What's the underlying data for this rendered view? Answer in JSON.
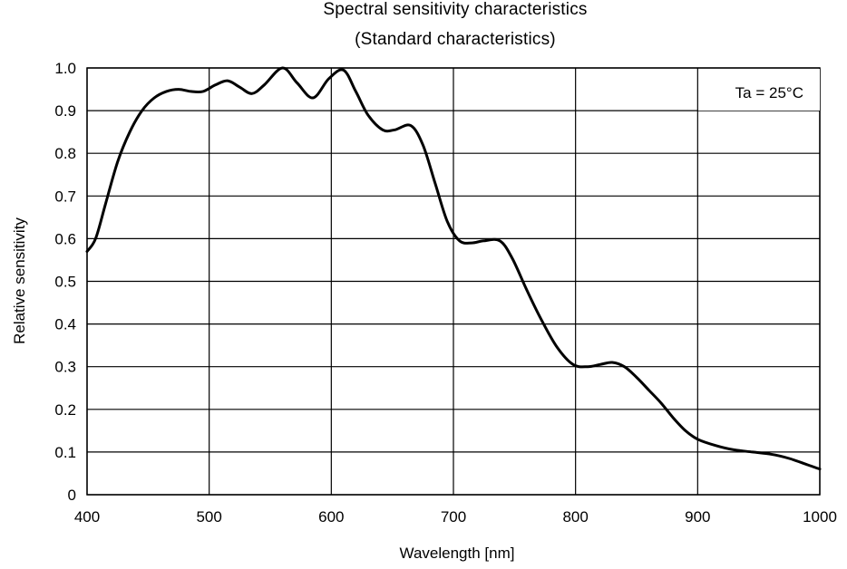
{
  "chart_data": {
    "type": "line",
    "title": "Spectral sensitivity characteristics",
    "subtitle": "(Standard characteristics)",
    "xlabel": "Wavelength [nm]",
    "ylabel": "Relative sensitivity",
    "annotation": "Ta = 25°C",
    "xlim": [
      400,
      1000
    ],
    "ylim": [
      0,
      1.0
    ],
    "x_ticks": [
      "400",
      "500",
      "600",
      "700",
      "800",
      "900",
      "1000"
    ],
    "y_ticks": [
      "0",
      "0.1",
      "0.2",
      "0.3",
      "0.4",
      "0.5",
      "0.6",
      "0.7",
      "0.8",
      "0.9",
      "1.0"
    ],
    "x_tick_values": [
      400,
      500,
      600,
      700,
      800,
      900,
      1000
    ],
    "y_tick_values": [
      0,
      0.1,
      0.2,
      0.3,
      0.4,
      0.5,
      0.6,
      0.7,
      0.8,
      0.9,
      1.0
    ],
    "grid": true,
    "series": [
      {
        "color": "#000000",
        "x": [
          400,
          407,
          415,
          425,
          435,
          445,
          455,
          465,
          475,
          485,
          495,
          505,
          515,
          525,
          535,
          545,
          560,
          572,
          585,
          598,
          610,
          620,
          630,
          642,
          652,
          665,
          675,
          685,
          695,
          705,
          715,
          725,
          738,
          748,
          760,
          772,
          785,
          798,
          810,
          820,
          830,
          840,
          850,
          860,
          870,
          880,
          890,
          900,
          915,
          930,
          945,
          960,
          975,
          990,
          1000
        ],
        "y": [
          0.57,
          0.6,
          0.68,
          0.78,
          0.85,
          0.9,
          0.93,
          0.945,
          0.95,
          0.945,
          0.945,
          0.96,
          0.97,
          0.955,
          0.94,
          0.96,
          1.0,
          0.965,
          0.93,
          0.975,
          0.995,
          0.945,
          0.89,
          0.855,
          0.855,
          0.865,
          0.82,
          0.73,
          0.64,
          0.595,
          0.59,
          0.595,
          0.595,
          0.555,
          0.48,
          0.41,
          0.345,
          0.305,
          0.3,
          0.305,
          0.31,
          0.3,
          0.275,
          0.245,
          0.215,
          0.18,
          0.15,
          0.13,
          0.115,
          0.105,
          0.1,
          0.095,
          0.085,
          0.07,
          0.06
        ]
      }
    ]
  }
}
